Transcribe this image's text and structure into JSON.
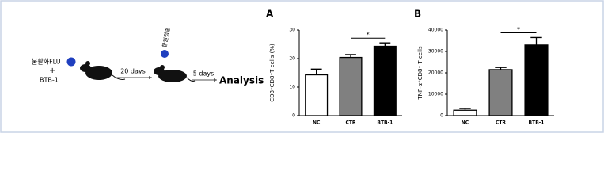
{
  "diagram": {
    "antigen": "불활화FLU",
    "plus": "+",
    "drug": "BTB-1",
    "step1": "20 days",
    "inoculation": "항원접종",
    "step2": "5 days",
    "result": "Analysis"
  },
  "chart_data": [
    {
      "type": "bar",
      "panel": "A",
      "ylabel": "CD3⁺CD8⁺T cells (%)",
      "categories": [
        "NC",
        "CTR",
        "BTB-1"
      ],
      "values": [
        14.3,
        20.4,
        24.3
      ],
      "errors": [
        2.0,
        1.0,
        1.2
      ],
      "colors": [
        "#ffffff",
        "#808080",
        "#000000"
      ],
      "ylim": [
        0,
        30
      ],
      "yticks": [
        0,
        10,
        20,
        30
      ],
      "annotation": "*"
    },
    {
      "type": "bar",
      "panel": "B",
      "ylabel": "TNF-α⁺CD8⁺ T cells",
      "categories": [
        "NC",
        "CTR",
        "BTB-1"
      ],
      "values": [
        2500,
        21500,
        33000
      ],
      "errors": [
        800,
        1000,
        3500
      ],
      "colors": [
        "#ffffff",
        "#808080",
        "#000000"
      ],
      "ylim": [
        0,
        40000
      ],
      "yticks": [
        0,
        10000,
        20000,
        30000,
        40000
      ],
      "annotation": "*"
    }
  ]
}
